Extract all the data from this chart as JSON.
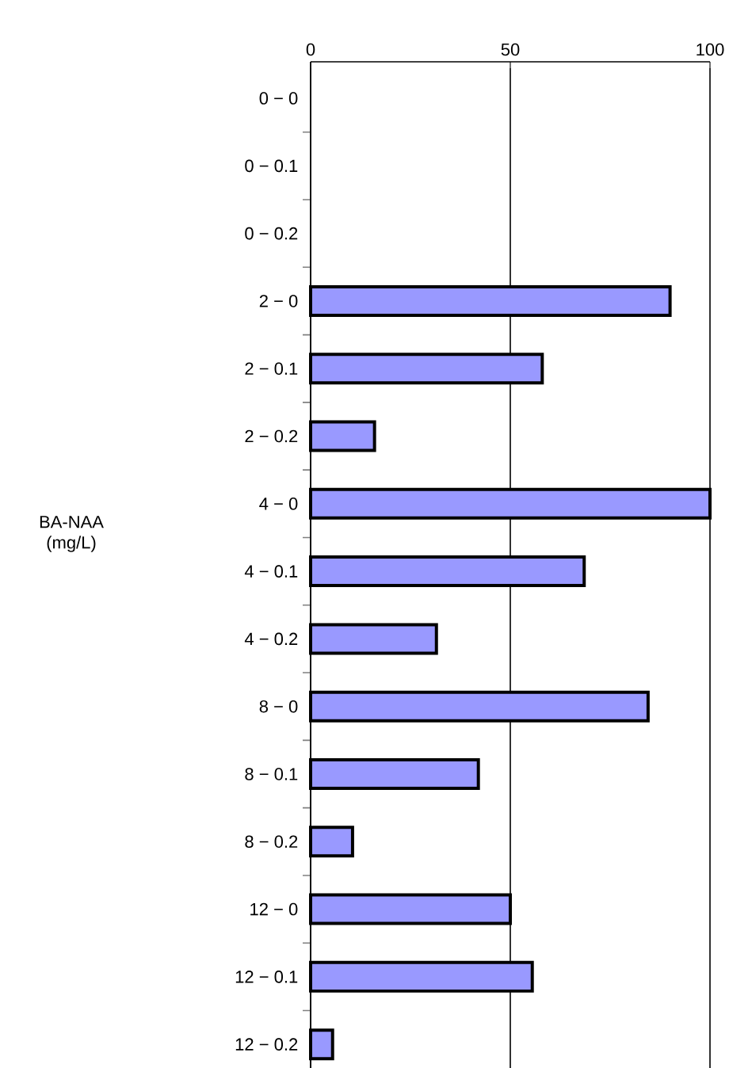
{
  "chart_data": {
    "type": "bar",
    "orientation": "horizontal",
    "annotations": [
      "BA-NAA (mg/L)"
    ],
    "categories": [
      "0 − 0",
      "0 − 0.1",
      "0 − 0.2",
      "2 − 0",
      "2 − 0.1",
      "2 − 0.2",
      "4 − 0",
      "4 − 0.1",
      "4 − 0.2",
      "8 − 0",
      "8 − 0.1",
      "8 − 0.2",
      "12 − 0",
      "12 − 0.1",
      "12 − 0.2"
    ],
    "values": [
      null,
      null,
      null,
      90,
      58,
      16,
      100,
      68.5,
      31.5,
      84.5,
      42,
      10.5,
      50,
      55.5,
      5.5
    ],
    "color": "#9999ff",
    "xlim": [
      0,
      100
    ],
    "xticks": [
      0,
      50,
      100
    ],
    "grid": "x"
  }
}
